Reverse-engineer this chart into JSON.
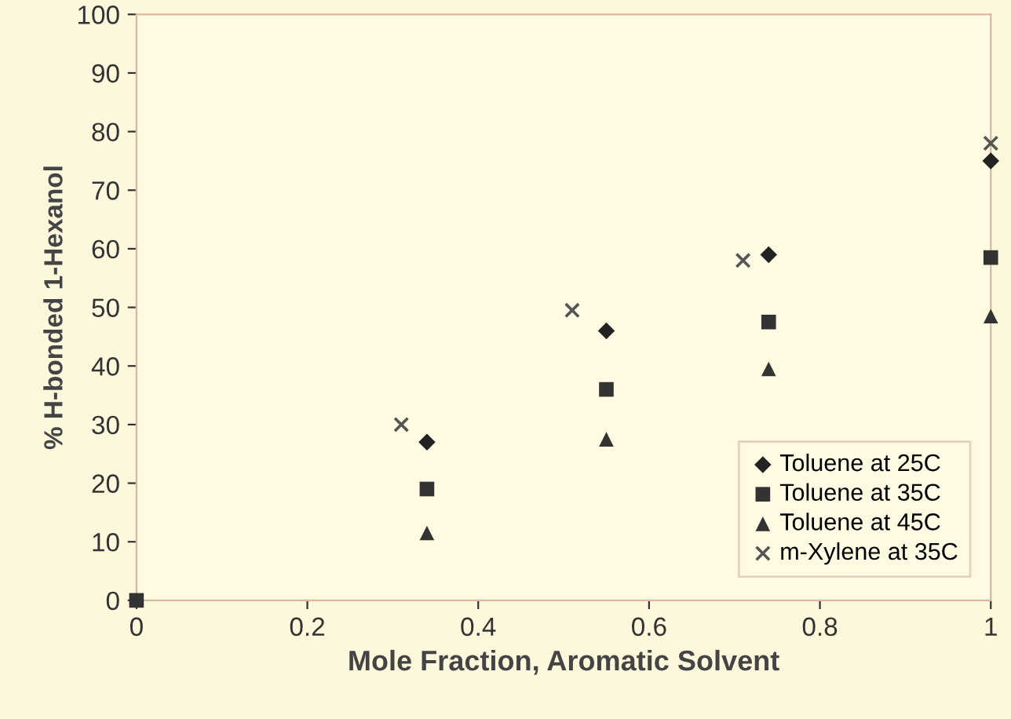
{
  "chart_data": {
    "type": "scatter",
    "xlabel": "Mole Fraction, Aromatic Solvent",
    "ylabel": "% H-bonded 1-Hexanol",
    "xlim": [
      0,
      1
    ],
    "xticks": [
      0,
      0.2,
      0.4,
      0.6,
      0.8,
      1
    ],
    "ylim": [
      0,
      100
    ],
    "yticks": [
      0,
      10,
      20,
      30,
      40,
      50,
      60,
      70,
      80,
      90,
      100
    ],
    "grid": false,
    "legend": "bottom right",
    "series": [
      {
        "name": "Toluene at 25C",
        "color": "#222222",
        "marker": "diamond",
        "x": [
          0.34,
          0.55,
          0.74,
          1.0
        ],
        "values": [
          27,
          46,
          59,
          75
        ]
      },
      {
        "name": "Toluene at 35C",
        "color": "#333333",
        "marker": "square",
        "x": [
          0,
          0.34,
          0.55,
          0.74,
          1.0
        ],
        "values": [
          0,
          19,
          36,
          47.5,
          58.5
        ]
      },
      {
        "name": "Toluene at 45C",
        "color": "#333333",
        "marker": "triangle",
        "x": [
          0.34,
          0.55,
          0.74,
          1.0
        ],
        "values": [
          11.5,
          27.5,
          39.5,
          48.5
        ]
      },
      {
        "name": "m-Xylene at 35C",
        "color": "#555555",
        "marker": "cross",
        "x": [
          0.31,
          0.51,
          0.71,
          1.0
        ],
        "values": [
          30,
          49.5,
          58,
          78
        ]
      }
    ]
  }
}
